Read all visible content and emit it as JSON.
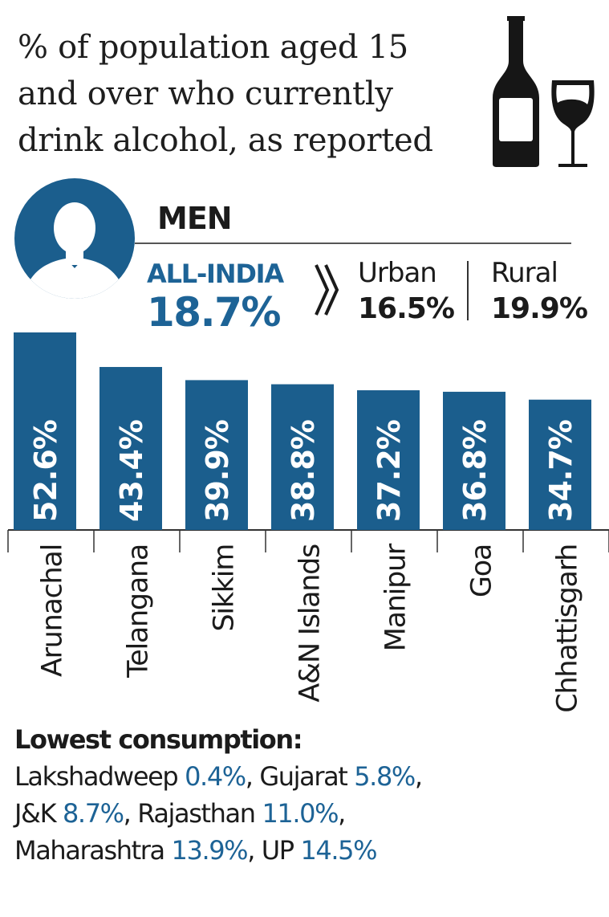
{
  "title_lines": [
    "% of population aged 15",
    "and over who currently",
    "drink alcohol, as reported"
  ],
  "icons": {
    "bottle": "wine-bottle-icon",
    "glass": "wine-glass-icon",
    "person": "person-silhouette-icon"
  },
  "section_label": "MEN",
  "all_india": {
    "label": "ALL-INDIA",
    "value": "18.7%"
  },
  "urban": {
    "label": "Urban",
    "value": "16.5%"
  },
  "rural": {
    "label": "Rural",
    "value": "19.9%"
  },
  "colors": {
    "accent": "#1d6396",
    "bar": "#1b5e8d",
    "text": "#1b1b1b"
  },
  "chart_data": {
    "type": "bar",
    "categories": [
      "Arunachal",
      "Telangana",
      "Sikkim",
      "A&N Islands",
      "Manipur",
      "Goa",
      "Chhattisgarh"
    ],
    "values": [
      52.6,
      43.4,
      39.9,
      38.8,
      37.2,
      36.8,
      34.7
    ],
    "value_labels": [
      "52.6%",
      "43.4%",
      "39.9%",
      "38.8%",
      "37.2%",
      "36.8%",
      "34.7%"
    ],
    "ylim": [
      0,
      52.6
    ],
    "grid": false,
    "title": "% of population aged 15 and over who currently drink alcohol, as reported"
  },
  "lowest": {
    "heading": "Lowest consumption:",
    "items": [
      {
        "name": "Lakshadweep",
        "value": "0.4%"
      },
      {
        "name": "Gujarat",
        "value": "5.8%"
      },
      {
        "name": "J&K",
        "value": "8.7%"
      },
      {
        "name": "Rajasthan",
        "value": "11.0%"
      },
      {
        "name": "Maharashtra",
        "value": "13.9%"
      },
      {
        "name": "UP",
        "value": "14.5%"
      }
    ]
  }
}
